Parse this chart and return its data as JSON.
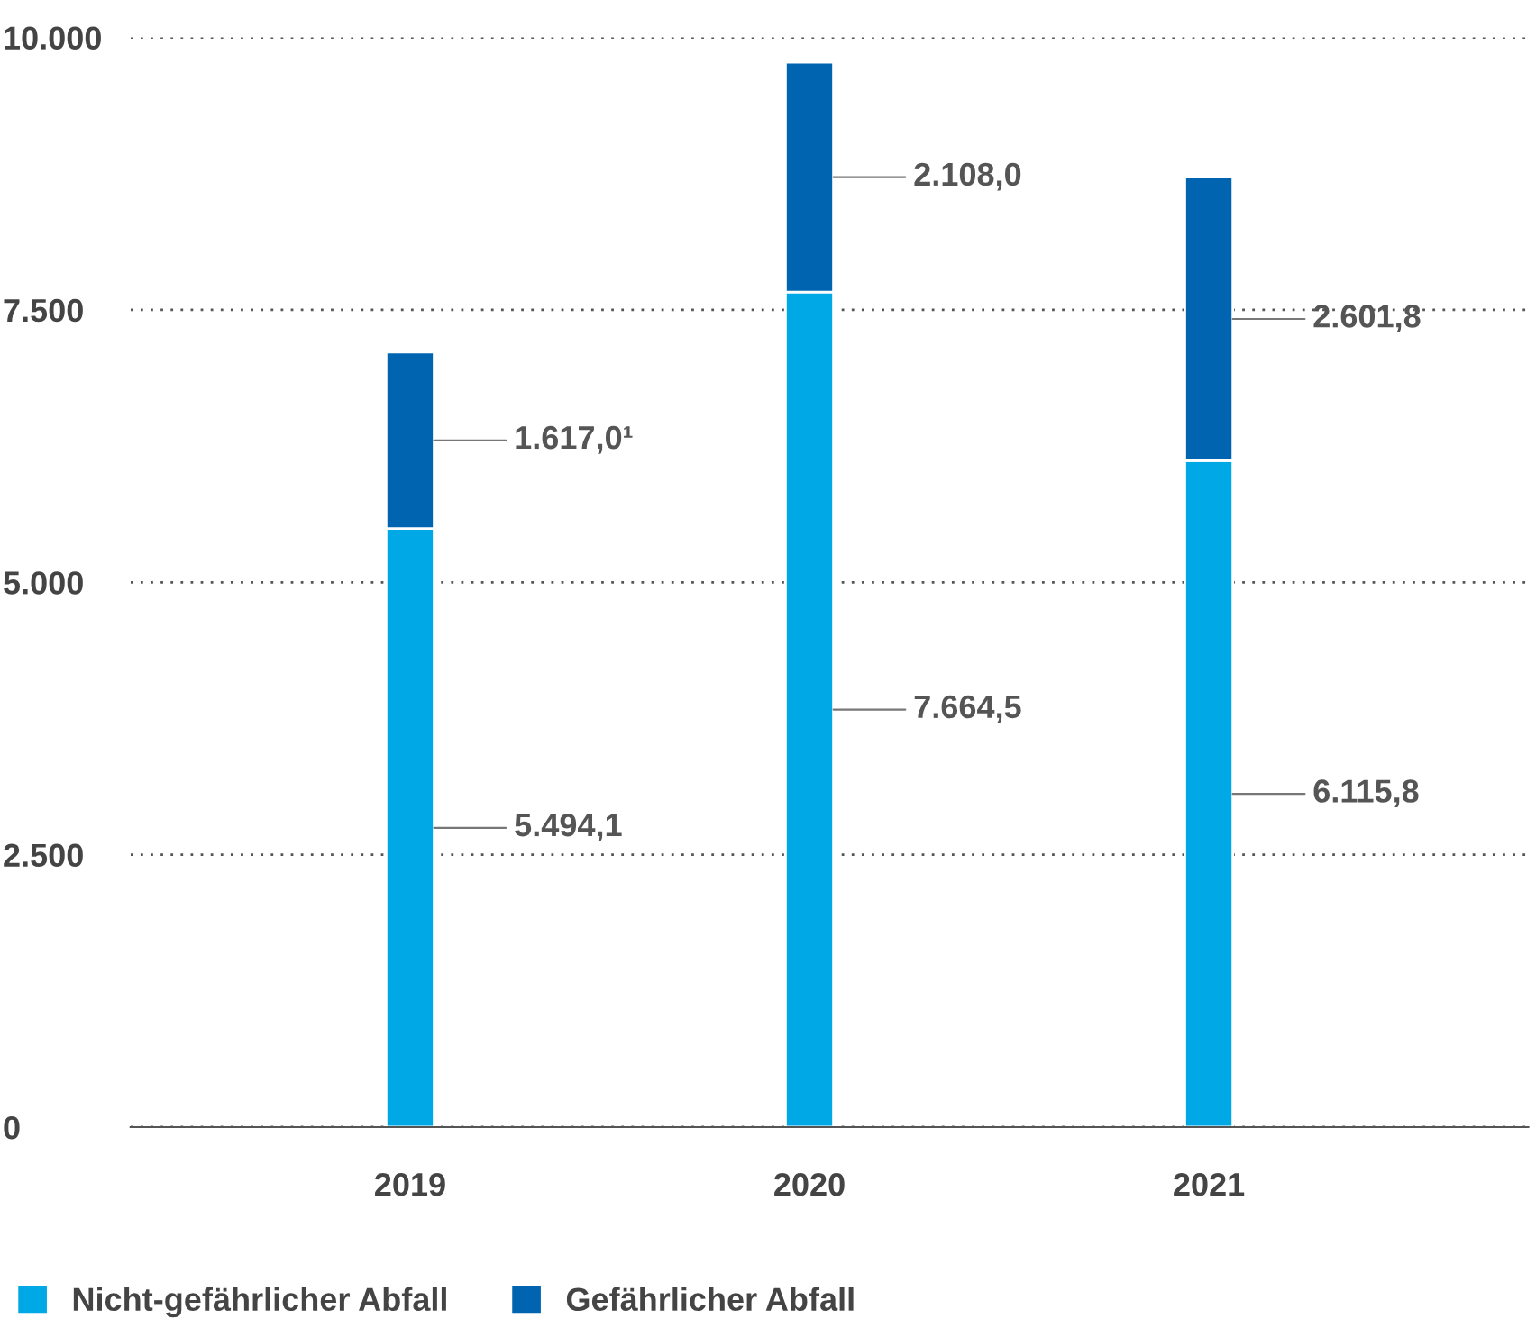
{
  "chart_data": {
    "type": "bar",
    "stacked": true,
    "categories": [
      "2019",
      "2020",
      "2021"
    ],
    "series": [
      {
        "name": "Nicht-gefährlicher Abfall",
        "color": "#00a8e6",
        "values": [
          5494.1,
          7664.5,
          6115.8
        ],
        "value_labels": [
          "5.494,1",
          "7.664,5",
          "6.115,8"
        ]
      },
      {
        "name": "Gefährlicher Abfall",
        "color": "#0064b0",
        "values": [
          1617.0,
          2108.0,
          2601.8
        ],
        "value_labels": [
          "1.617,0¹",
          "2.108,0",
          "2.601,8"
        ]
      }
    ],
    "ylim": [
      0,
      10000
    ],
    "yticks": [
      0,
      {
        "value": 2500,
        "label": "2.500"
      },
      {
        "value": 5000,
        "label": "5.000"
      },
      {
        "value": 7500,
        "label": "7.500"
      },
      {
        "value": 10000,
        "label": "10.000"
      }
    ],
    "grid": "y",
    "legend": "bottom left"
  }
}
